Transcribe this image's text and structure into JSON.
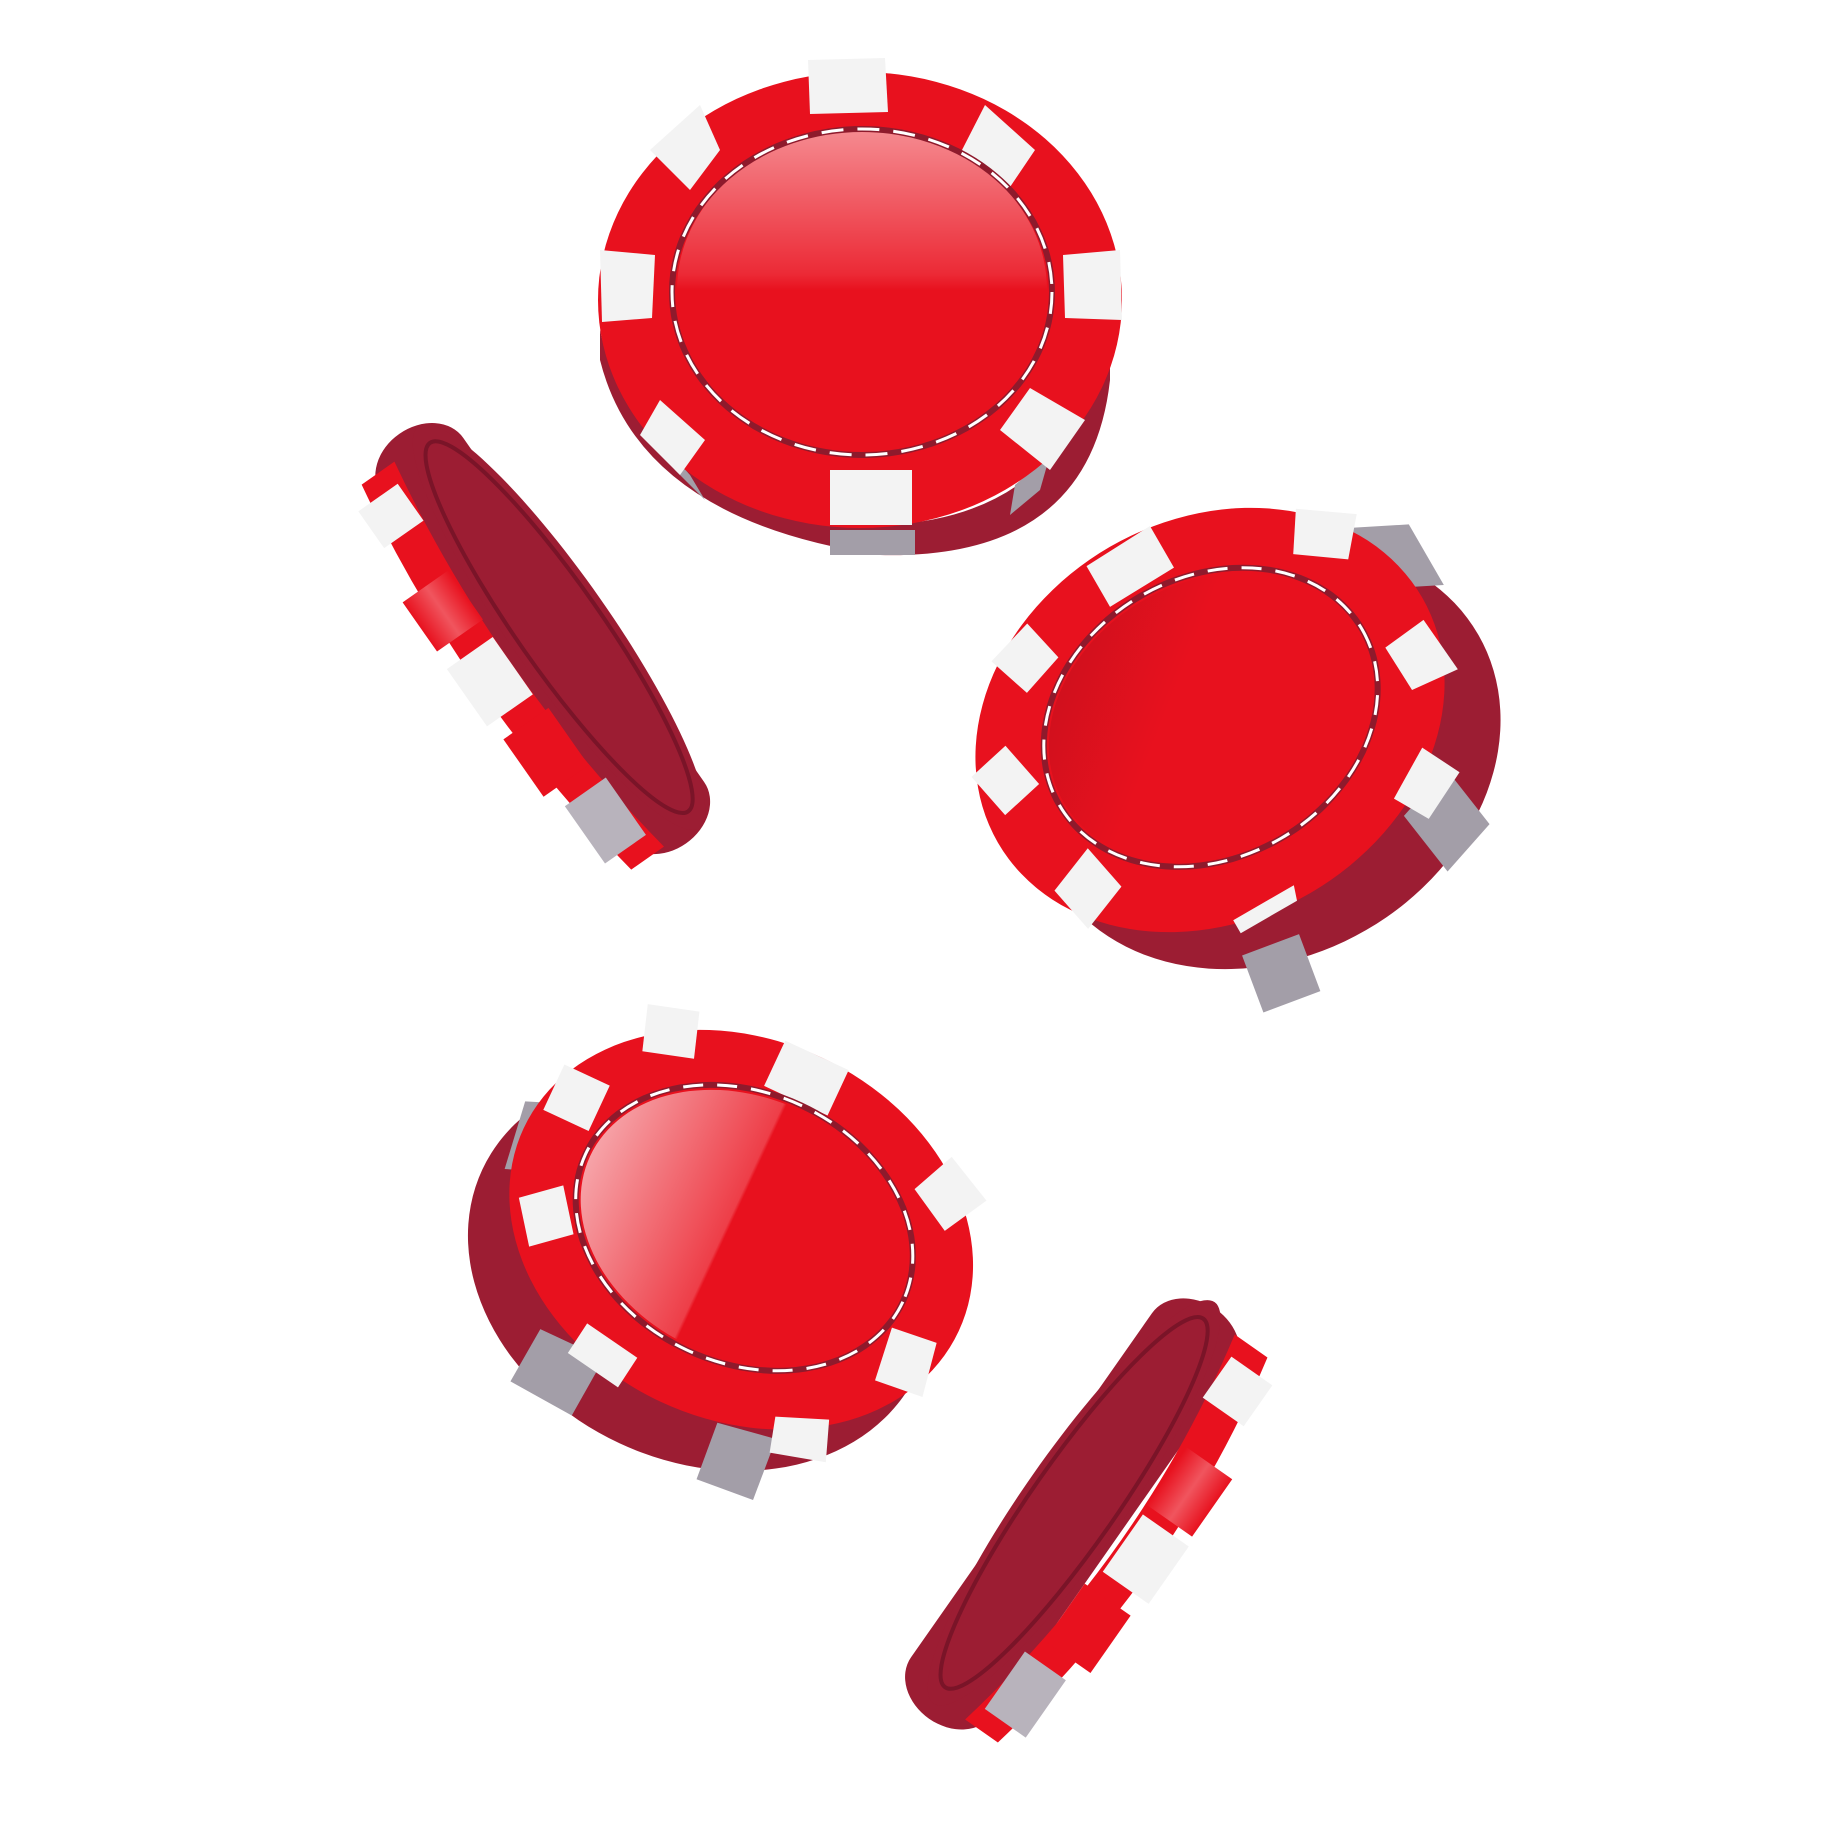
{
  "scene": {
    "subject": "falling-poker-chips",
    "chip_count": 5,
    "background_color": "#ffffff"
  },
  "colors": {
    "chip_face_red": "#e8111e",
    "chip_face_light": "#f07a80",
    "chip_edge_dark": "#9c1d33",
    "chip_stripe_white": "#f3f3f3",
    "chip_edge_gray": "#a39ea8",
    "stitch_dark": "#8e1a2c",
    "stitch_white": "#ffffff"
  },
  "chips": [
    {
      "name": "chip-top-center",
      "view": "face-up"
    },
    {
      "name": "chip-left-edge",
      "view": "edge-on"
    },
    {
      "name": "chip-right",
      "view": "tilted"
    },
    {
      "name": "chip-bottom-left",
      "view": "tilted"
    },
    {
      "name": "chip-bottom-right-edge",
      "view": "edge-on"
    }
  ]
}
